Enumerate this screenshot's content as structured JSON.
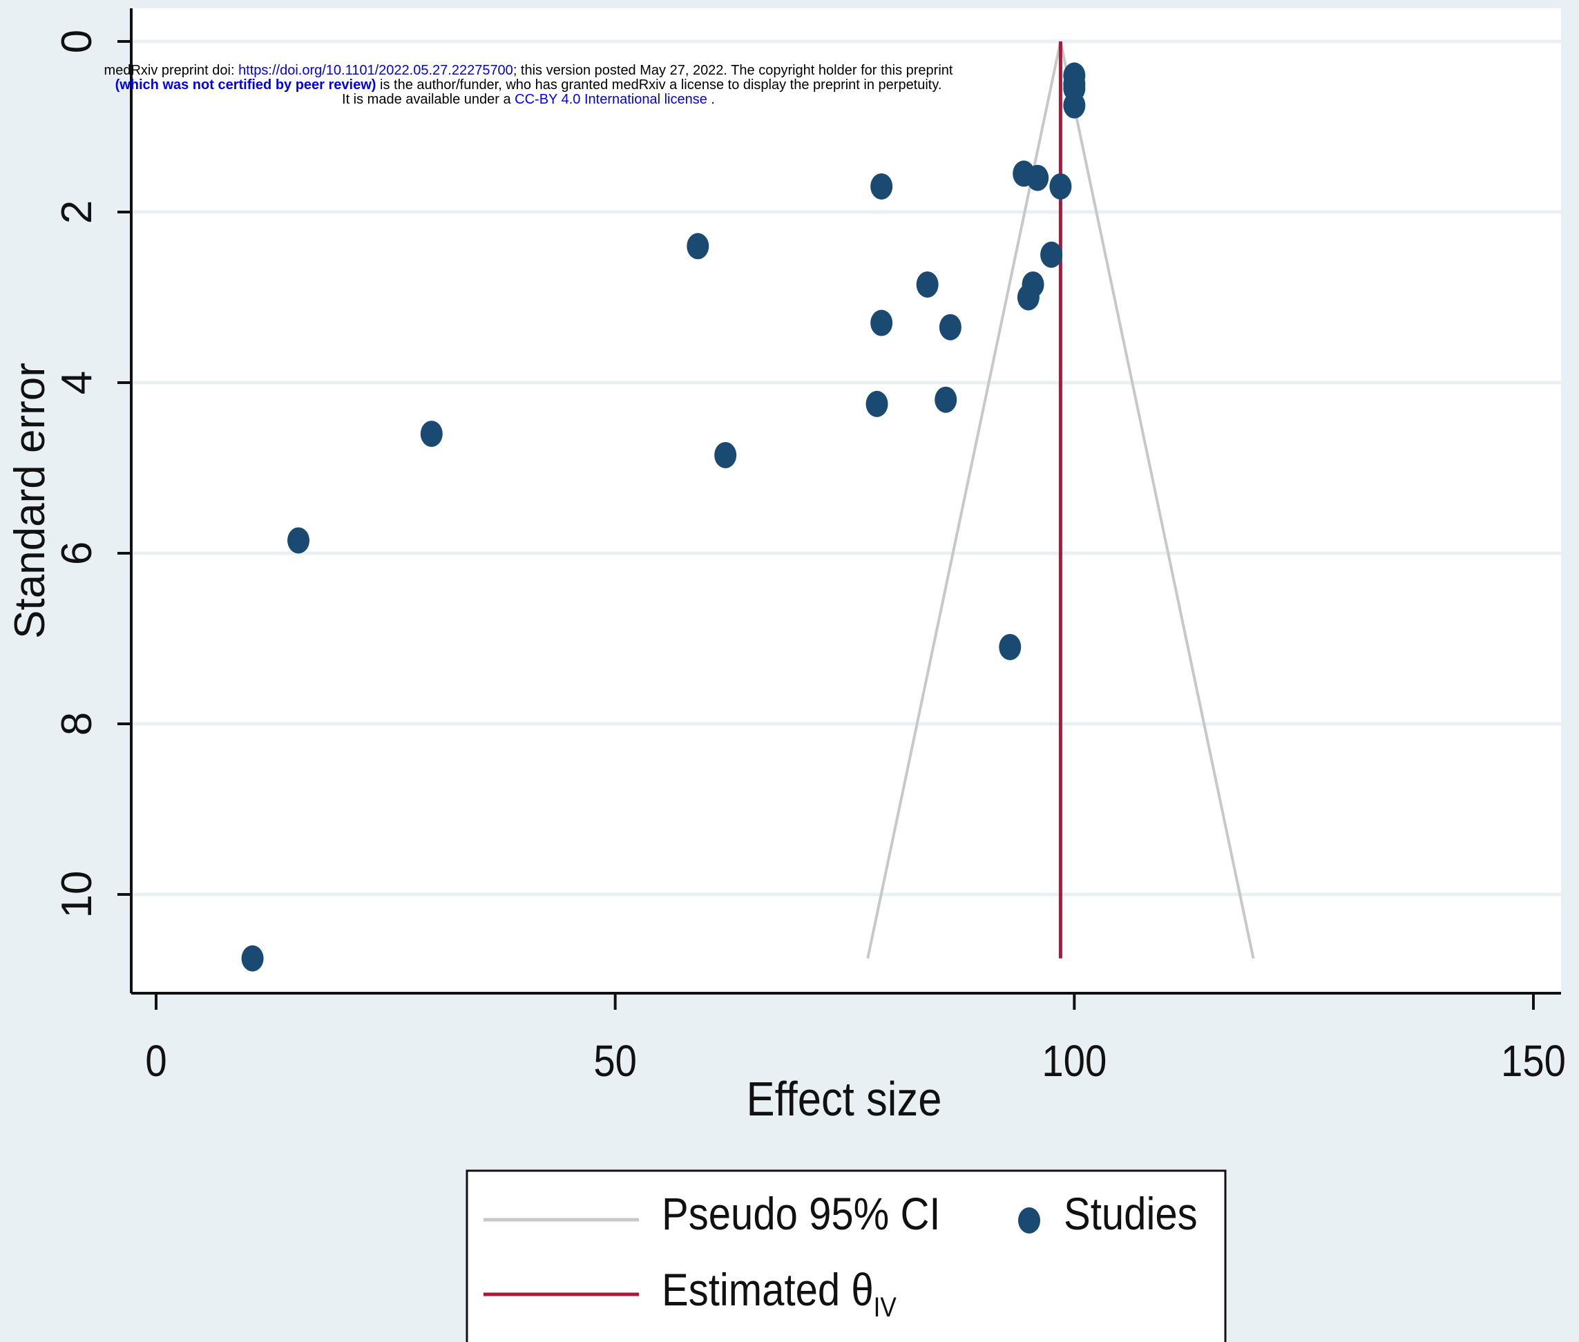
{
  "watermark": {
    "line1_prefix": "medRxiv preprint doi: ",
    "line1_doi": "https://doi.org/10.1101/2022.05.27.22275700",
    "line1_suffix": "; this version posted May 27, 2022. The copyright holder for this preprint",
    "line2_bold": "(which was not certified by peer review)",
    "line2_suffix": " is the author/funder, who has granted medRxiv a license to display the preprint in perpetuity.",
    "line3_prefix": "It is made available under a ",
    "line3_license": "CC-BY 4.0 International license",
    "line3_suffix": " ."
  },
  "colors": {
    "background": "#e8f0f3",
    "plot_background": "#ffffff",
    "gridline": "#e8f0f3",
    "studies": "#1a4a72",
    "estimate": "#b0163a",
    "pseudo_ci": "#c8c8c8"
  },
  "chart_data": {
    "type": "scatter",
    "title": "",
    "xlabel": "Effect size",
    "ylabel": "Standard error",
    "xlim": [
      0,
      150
    ],
    "ylim": [
      0,
      11
    ],
    "y_inverted": true,
    "x_ticks": [
      0,
      50,
      100,
      150
    ],
    "y_ticks": [
      0,
      2,
      4,
      6,
      8,
      10
    ],
    "grid": "horizontal",
    "legend_position": "bottom",
    "studies": [
      {
        "x": 100,
        "y": 0.4
      },
      {
        "x": 100,
        "y": 0.5
      },
      {
        "x": 100,
        "y": 0.55
      },
      {
        "x": 100,
        "y": 0.75
      },
      {
        "x": 79,
        "y": 1.7
      },
      {
        "x": 94.5,
        "y": 1.55
      },
      {
        "x": 96,
        "y": 1.6
      },
      {
        "x": 98.5,
        "y": 1.7
      },
      {
        "x": 59,
        "y": 2.4
      },
      {
        "x": 97.5,
        "y": 2.5
      },
      {
        "x": 84,
        "y": 2.85
      },
      {
        "x": 95.5,
        "y": 2.85
      },
      {
        "x": 95,
        "y": 3.0
      },
      {
        "x": 79,
        "y": 3.3
      },
      {
        "x": 86.5,
        "y": 3.35
      },
      {
        "x": 78.5,
        "y": 4.25
      },
      {
        "x": 86,
        "y": 4.2
      },
      {
        "x": 30,
        "y": 4.6
      },
      {
        "x": 62,
        "y": 4.85
      },
      {
        "x": 15.5,
        "y": 5.85
      },
      {
        "x": 93,
        "y": 7.1
      },
      {
        "x": 10.5,
        "y": 10.75
      }
    ],
    "estimate": {
      "x": 98.5
    },
    "pseudo_ci": {
      "apex": {
        "x": 98.5,
        "y": 0
      },
      "base_y": 10.75,
      "base_left_x": 77.5,
      "base_right_x": 119.5
    },
    "legend": [
      {
        "key": "pseudo_ci",
        "label": "Pseudo 95% CI"
      },
      {
        "key": "studies",
        "label": "Studies"
      },
      {
        "key": "estimate",
        "label": "Estimated θ",
        "subscript": "IV"
      }
    ]
  }
}
